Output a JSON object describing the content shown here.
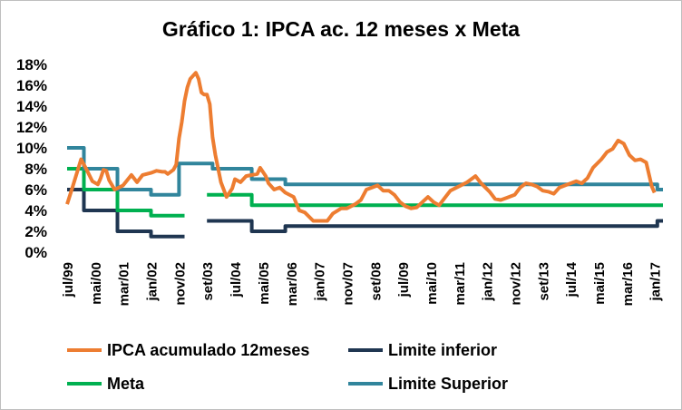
{
  "chart_data": {
    "type": "line",
    "title": "Gráfico 1: IPCA ac. 12 meses x Meta",
    "xlabel": "",
    "ylabel": "",
    "ylim": [
      0,
      18
    ],
    "x_range": [
      "1999-07",
      "2017-04"
    ],
    "grid": false,
    "legend_position": "bottom",
    "y_ticks": [
      "0%",
      "2%",
      "4%",
      "6%",
      "8%",
      "10%",
      "12%",
      "14%",
      "16%",
      "18%"
    ],
    "y_tick_values": [
      0,
      2,
      4,
      6,
      8,
      10,
      12,
      14,
      16,
      18
    ],
    "x_ticks": [
      {
        "label": "jul/99",
        "date": "1999-07"
      },
      {
        "label": "mai/00",
        "date": "2000-05"
      },
      {
        "label": "mar/01",
        "date": "2001-03"
      },
      {
        "label": "jan/02",
        "date": "2002-01"
      },
      {
        "label": "nov/02",
        "date": "2002-11"
      },
      {
        "label": "set/03",
        "date": "2003-09"
      },
      {
        "label": "jul/04",
        "date": "2004-07"
      },
      {
        "label": "mai/05",
        "date": "2005-05"
      },
      {
        "label": "mar/06",
        "date": "2006-03"
      },
      {
        "label": "jan/07",
        "date": "2007-01"
      },
      {
        "label": "nov/07",
        "date": "2007-11"
      },
      {
        "label": "set/08",
        "date": "2008-09"
      },
      {
        "label": "jul/09",
        "date": "2009-07"
      },
      {
        "label": "mai/10",
        "date": "2010-05"
      },
      {
        "label": "mar/11",
        "date": "2011-03"
      },
      {
        "label": "jan/12",
        "date": "2012-01"
      },
      {
        "label": "nov/12",
        "date": "2012-11"
      },
      {
        "label": "set/13",
        "date": "2013-09"
      },
      {
        "label": "jul/14",
        "date": "2014-07"
      },
      {
        "label": "mai/15",
        "date": "2015-05"
      },
      {
        "label": "mar/16",
        "date": "2016-03"
      },
      {
        "label": "jan/17",
        "date": "2017-01"
      }
    ],
    "series": [
      {
        "name": "IPCA acumulado 12meses",
        "color": "#ED7D31",
        "points": [
          [
            "1999-07",
            4.6
          ],
          [
            "1999-09",
            6.3
          ],
          [
            "1999-12",
            8.9
          ],
          [
            "2000-02",
            7.9
          ],
          [
            "2000-04",
            6.8
          ],
          [
            "2000-06",
            6.5
          ],
          [
            "2000-07",
            7.1
          ],
          [
            "2000-08",
            7.9
          ],
          [
            "2000-09",
            7.8
          ],
          [
            "2000-10",
            6.9
          ],
          [
            "2000-12",
            6.0
          ],
          [
            "2001-03",
            6.4
          ],
          [
            "2001-06",
            7.4
          ],
          [
            "2001-08",
            6.7
          ],
          [
            "2001-10",
            7.4
          ],
          [
            "2002-01",
            7.6
          ],
          [
            "2002-03",
            7.8
          ],
          [
            "2002-05",
            7.7
          ],
          [
            "2002-06",
            7.7
          ],
          [
            "2002-07",
            7.5
          ],
          [
            "2002-09",
            7.9
          ],
          [
            "2002-10",
            8.4
          ],
          [
            "2002-11",
            10.9
          ],
          [
            "2002-12",
            12.5
          ],
          [
            "2003-01",
            14.5
          ],
          [
            "2003-02",
            15.8
          ],
          [
            "2003-03",
            16.6
          ],
          [
            "2003-05",
            17.2
          ],
          [
            "2003-06",
            16.6
          ],
          [
            "2003-07",
            15.3
          ],
          [
            "2003-08",
            15.1
          ],
          [
            "2003-09",
            15.1
          ],
          [
            "2003-10",
            14.2
          ],
          [
            "2003-11",
            11.0
          ],
          [
            "2003-12",
            9.3
          ],
          [
            "2004-02",
            6.7
          ],
          [
            "2004-04",
            5.3
          ],
          [
            "2004-06",
            6.1
          ],
          [
            "2004-07",
            7.0
          ],
          [
            "2004-09",
            6.7
          ],
          [
            "2004-11",
            7.3
          ],
          [
            "2005-01",
            7.4
          ],
          [
            "2005-03",
            7.5
          ],
          [
            "2005-04",
            8.1
          ],
          [
            "2005-06",
            7.3
          ],
          [
            "2005-07",
            6.6
          ],
          [
            "2005-09",
            6.0
          ],
          [
            "2005-11",
            6.2
          ],
          [
            "2006-01",
            5.7
          ],
          [
            "2006-04",
            5.3
          ],
          [
            "2006-06",
            4.0
          ],
          [
            "2006-08",
            3.8
          ],
          [
            "2006-11",
            3.0
          ],
          [
            "2007-02",
            3.0
          ],
          [
            "2007-04",
            3.0
          ],
          [
            "2007-06",
            3.7
          ],
          [
            "2007-09",
            4.2
          ],
          [
            "2007-11",
            4.2
          ],
          [
            "2008-02",
            4.6
          ],
          [
            "2008-04",
            5.0
          ],
          [
            "2008-06",
            6.0
          ],
          [
            "2008-08",
            6.2
          ],
          [
            "2008-10",
            6.4
          ],
          [
            "2008-12",
            5.9
          ],
          [
            "2009-02",
            5.9
          ],
          [
            "2009-04",
            5.5
          ],
          [
            "2009-06",
            4.8
          ],
          [
            "2009-08",
            4.4
          ],
          [
            "2009-10",
            4.2
          ],
          [
            "2009-12",
            4.3
          ],
          [
            "2010-02",
            4.8
          ],
          [
            "2010-04",
            5.3
          ],
          [
            "2010-06",
            4.8
          ],
          [
            "2010-08",
            4.5
          ],
          [
            "2010-10",
            5.2
          ],
          [
            "2010-12",
            5.9
          ],
          [
            "2011-03",
            6.3
          ],
          [
            "2011-06",
            6.7
          ],
          [
            "2011-09",
            7.3
          ],
          [
            "2011-11",
            6.6
          ],
          [
            "2012-02",
            5.8
          ],
          [
            "2012-04",
            5.1
          ],
          [
            "2012-06",
            5.0
          ],
          [
            "2012-08",
            5.2
          ],
          [
            "2012-11",
            5.5
          ],
          [
            "2013-01",
            6.2
          ],
          [
            "2013-03",
            6.6
          ],
          [
            "2013-05",
            6.5
          ],
          [
            "2013-07",
            6.3
          ],
          [
            "2013-09",
            5.9
          ],
          [
            "2013-11",
            5.8
          ],
          [
            "2014-01",
            5.6
          ],
          [
            "2014-03",
            6.2
          ],
          [
            "2014-06",
            6.5
          ],
          [
            "2014-09",
            6.8
          ],
          [
            "2014-11",
            6.6
          ],
          [
            "2015-01",
            7.1
          ],
          [
            "2015-03",
            8.1
          ],
          [
            "2015-06",
            8.9
          ],
          [
            "2015-08",
            9.6
          ],
          [
            "2015-10",
            9.9
          ],
          [
            "2015-12",
            10.7
          ],
          [
            "2016-02",
            10.4
          ],
          [
            "2016-04",
            9.3
          ],
          [
            "2016-06",
            8.8
          ],
          [
            "2016-08",
            8.9
          ],
          [
            "2016-10",
            8.6
          ],
          [
            "2016-12",
            6.3
          ],
          [
            "2017-01",
            5.7
          ]
        ]
      },
      {
        "name": "Limite inferior",
        "color": "#1F3651",
        "segments": [
          [
            [
              "1999-07",
              6.0
            ],
            [
              "2000-01",
              6.0
            ],
            [
              "2000-01",
              4.0
            ],
            [
              "2001-01",
              4.0
            ],
            [
              "2001-01",
              2.0
            ],
            [
              "2002-01",
              2.0
            ],
            [
              "2002-01",
              1.5
            ],
            [
              "2003-01",
              1.5
            ]
          ],
          [
            [
              "2003-09",
              3.0
            ],
            [
              "2005-01",
              3.0
            ],
            [
              "2005-01",
              2.0
            ],
            [
              "2006-01",
              2.0
            ],
            [
              "2006-01",
              2.5
            ],
            [
              "2017-02",
              2.5
            ],
            [
              "2017-02",
              3.0
            ],
            [
              "2017-04",
              3.0
            ]
          ]
        ]
      },
      {
        "name": "Meta",
        "color": "#00B050",
        "segments": [
          [
            [
              "1999-07",
              8.0
            ],
            [
              "2000-01",
              8.0
            ],
            [
              "2000-01",
              6.0
            ],
            [
              "2001-01",
              6.0
            ],
            [
              "2001-01",
              4.0
            ],
            [
              "2002-01",
              4.0
            ],
            [
              "2002-01",
              3.5
            ],
            [
              "2003-01",
              3.5
            ]
          ],
          [
            [
              "2003-09",
              5.5
            ],
            [
              "2005-01",
              5.5
            ],
            [
              "2005-01",
              4.5
            ],
            [
              "2017-04",
              4.5
            ]
          ]
        ]
      },
      {
        "name": "Limite Superior",
        "color": "#31859C",
        "segments": [
          [
            [
              "1999-07",
              10.0
            ],
            [
              "2000-01",
              10.0
            ],
            [
              "2000-01",
              8.0
            ],
            [
              "2001-01",
              8.0
            ],
            [
              "2001-01",
              6.0
            ],
            [
              "2002-01",
              6.0
            ],
            [
              "2002-01",
              5.5
            ],
            [
              "2002-11",
              5.5
            ],
            [
              "2002-11",
              8.5
            ],
            [
              "2003-11",
              8.5
            ],
            [
              "2003-11",
              8.0
            ],
            [
              "2005-01",
              8.0
            ],
            [
              "2005-01",
              7.0
            ],
            [
              "2006-01",
              7.0
            ],
            [
              "2006-01",
              6.5
            ],
            [
              "2017-02",
              6.5
            ],
            [
              "2017-02",
              6.0
            ],
            [
              "2017-04",
              6.0
            ]
          ]
        ]
      }
    ]
  }
}
